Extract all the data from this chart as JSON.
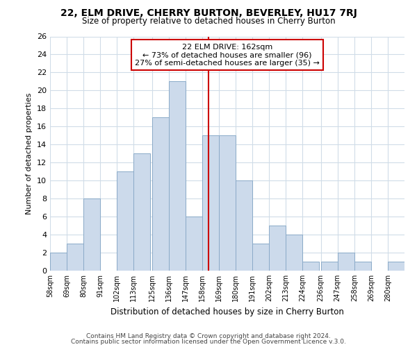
{
  "title": "22, ELM DRIVE, CHERRY BURTON, BEVERLEY, HU17 7RJ",
  "subtitle": "Size of property relative to detached houses in Cherry Burton",
  "xlabel": "Distribution of detached houses by size in Cherry Burton",
  "ylabel": "Number of detached properties",
  "bar_color": "#ccdaeb",
  "bar_edge_color": "#8aaac8",
  "bin_labels": [
    "58sqm",
    "69sqm",
    "80sqm",
    "91sqm",
    "102sqm",
    "113sqm",
    "125sqm",
    "136sqm",
    "147sqm",
    "158sqm",
    "169sqm",
    "180sqm",
    "191sqm",
    "202sqm",
    "213sqm",
    "224sqm",
    "236sqm",
    "247sqm",
    "258sqm",
    "269sqm",
    "280sqm"
  ],
  "bin_edges": [
    58,
    69,
    80,
    91,
    102,
    113,
    125,
    136,
    147,
    158,
    169,
    180,
    191,
    202,
    213,
    224,
    236,
    247,
    258,
    269,
    280
  ],
  "bin_width": 11,
  "counts": [
    2,
    3,
    8,
    0,
    11,
    13,
    17,
    21,
    6,
    15,
    15,
    10,
    3,
    5,
    4,
    1,
    1,
    2,
    1,
    0,
    1
  ],
  "vertical_line_x": 162,
  "vertical_line_color": "#cc0000",
  "ylim": [
    0,
    26
  ],
  "yticks": [
    0,
    2,
    4,
    6,
    8,
    10,
    12,
    14,
    16,
    18,
    20,
    22,
    24,
    26
  ],
  "annotation_title": "22 ELM DRIVE: 162sqm",
  "annotation_line1": "← 73% of detached houses are smaller (96)",
  "annotation_line2": "27% of semi-detached houses are larger (35) →",
  "annotation_box_color": "#ffffff",
  "annotation_box_edge": "#cc0000",
  "footer1": "Contains HM Land Registry data © Crown copyright and database right 2024.",
  "footer2": "Contains public sector information licensed under the Open Government Licence v.3.0.",
  "background_color": "#ffffff",
  "grid_color": "#d0dce8"
}
